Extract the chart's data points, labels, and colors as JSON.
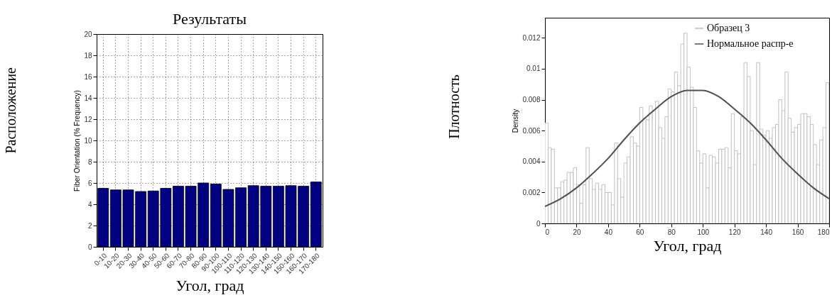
{
  "chart_data": [
    {
      "type": "bar",
      "title": "Результаты",
      "xlabel": "Угол, град",
      "ylabel": "Fiber Orientation (% Frequency)",
      "annotations": [
        "Расположение"
      ],
      "categories": [
        "0-10",
        "10-20",
        "20-30",
        "30-40",
        "40-50",
        "50-60",
        "60-70",
        "70-80",
        "80-90",
        "90-100",
        "100-110",
        "110-120",
        "120-130",
        "130-140",
        "140-150",
        "150-160",
        "160-170",
        "170-180"
      ],
      "values": [
        5.5,
        5.35,
        5.35,
        5.2,
        5.25,
        5.5,
        5.7,
        5.7,
        6.0,
        5.9,
        5.4,
        5.55,
        5.75,
        5.7,
        5.7,
        5.75,
        5.7,
        6.1
      ],
      "color": "#000080",
      "ylim": [
        0,
        20
      ],
      "yticks": [
        0,
        2,
        4,
        6,
        8,
        10,
        12,
        14,
        16,
        18,
        20
      ],
      "grid": true
    },
    {
      "type": "histogram",
      "xlabel": "Угол, град",
      "ylabel": "Density",
      "annotations": [
        "Плотность"
      ],
      "bins": [
        0,
        2,
        4,
        6,
        8,
        10,
        12,
        14,
        16,
        18,
        20,
        22,
        24,
        26,
        28,
        30,
        32,
        34,
        36,
        38,
        40,
        42,
        44,
        46,
        48,
        50,
        52,
        54,
        56,
        58,
        60,
        62,
        64,
        66,
        68,
        70,
        72,
        74,
        76,
        78,
        80,
        82,
        84,
        86,
        88,
        90,
        92,
        94,
        96,
        98,
        100,
        102,
        104,
        106,
        108,
        110,
        112,
        114,
        116,
        118,
        120,
        122,
        124,
        126,
        128,
        130,
        132,
        134,
        136,
        138,
        140,
        142,
        144,
        146,
        148,
        150,
        152,
        154,
        156,
        158,
        160,
        162,
        164,
        166,
        168,
        170,
        172,
        174,
        176,
        178,
        180
      ],
      "series": [
        {
          "name": "Образец 3",
          "type": "histogram",
          "color": "#c0c0c0",
          "values": [
            0.0065,
            0.0049,
            0.0048,
            0.0023,
            0.0023,
            0.0027,
            0.0028,
            0.0033,
            0.0033,
            0.0036,
            0.0025,
            0.0013,
            0.0025,
            0.0049,
            0.0029,
            0.0022,
            0.0026,
            0.0022,
            0.0025,
            0.002,
            0.002,
            0.0012,
            0.0052,
            0.0029,
            0.0017,
            0.0039,
            0.0043,
            0.0056,
            0.0052,
            0.005,
            0.0075,
            0.0068,
            0.0067,
            0.0076,
            0.0073,
            0.0079,
            0.0062,
            0.0055,
            0.0069,
            0.0087,
            0.0085,
            0.0098,
            0.0089,
            0.0116,
            0.0123,
            0.0101,
            0.0088,
            0.0075,
            0.0047,
            0.0039,
            0.0045,
            0.0023,
            0.0044,
            0.0043,
            0.0039,
            0.0048,
            0.0048,
            0.0049,
            0.0036,
            0.0071,
            0.0047,
            0.0045,
            0.0069,
            0.0104,
            0.0095,
            0.006,
            0.0038,
            0.0104,
            0.0061,
            0.0057,
            0.006,
            0.0055,
            0.0062,
            0.0064,
            0.008,
            0.0073,
            0.0098,
            0.0068,
            0.0059,
            0.0062,
            0.0064,
            0.0071,
            0.0071,
            0.0069,
            0.0064,
            0.0051,
            0.0038,
            0.0054,
            0.0062,
            0.0091
          ]
        },
        {
          "name": "Нормальное распр-е",
          "type": "line",
          "color": "#505050",
          "x": [
            0,
            10,
            20,
            30,
            40,
            50,
            60,
            70,
            80,
            90,
            100,
            110,
            120,
            130,
            140,
            150,
            160,
            170,
            180
          ],
          "values": [
            0.0011,
            0.0016,
            0.0023,
            0.0032,
            0.0042,
            0.0054,
            0.0065,
            0.0074,
            0.0082,
            0.0086,
            0.0086,
            0.0082,
            0.0074,
            0.0065,
            0.0054,
            0.0042,
            0.0032,
            0.0023,
            0.0016
          ]
        }
      ],
      "xlim": [
        0,
        180
      ],
      "xticks": [
        0,
        20,
        40,
        60,
        80,
        100,
        120,
        140,
        160,
        180
      ],
      "ylim": [
        0,
        0.0133
      ],
      "yticks": [
        0,
        0.002,
        0.004,
        0.006,
        0.008,
        0.01,
        0.012
      ],
      "legend": "top right"
    }
  ]
}
